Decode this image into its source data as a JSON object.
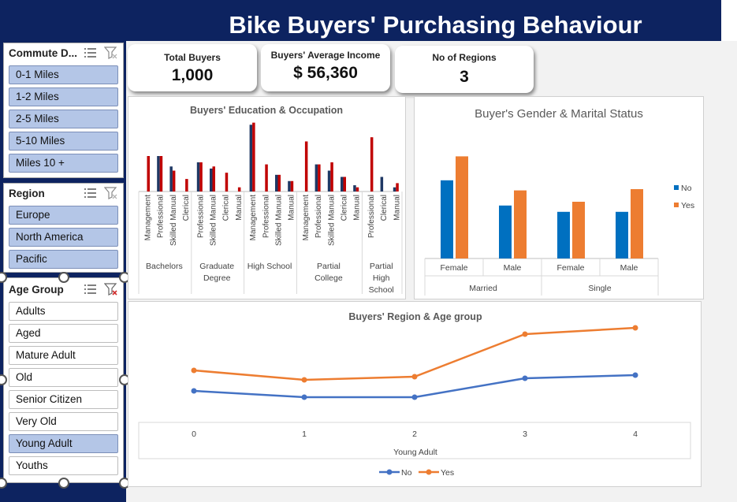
{
  "title": "Bike Buyers' Purchasing Behaviour",
  "kpis": {
    "total_buyers_label": "Total Buyers",
    "total_buyers_value": "1,000",
    "avg_income_label": "Buyers' Average Income",
    "avg_income_value": "$ 56,360",
    "regions_label": "No of Regions",
    "regions_value": "3"
  },
  "slicers": {
    "commute": {
      "title": "Commute D...",
      "items": [
        "0-1 Miles",
        "1-2 Miles",
        "2-5 Miles",
        "5-10 Miles",
        "Miles 10 +"
      ],
      "selected": [
        true,
        true,
        true,
        true,
        true
      ]
    },
    "region": {
      "title": "Region",
      "items": [
        "Europe",
        "North America",
        "Pacific"
      ],
      "selected": [
        true,
        true,
        true
      ]
    },
    "age": {
      "title": "Age Group",
      "items": [
        "Adults",
        "Aged",
        "Mature Adult",
        "Old",
        "Senior Citizen",
        "Very Old",
        "Young Adult",
        "Youths"
      ],
      "selected": [
        false,
        false,
        false,
        false,
        false,
        false,
        true,
        false
      ]
    }
  },
  "colors": {
    "navy": "#0d2360",
    "red": "#c00000",
    "darkblue": "#1f3864",
    "blue": "#0070c0",
    "orange": "#ed7d31",
    "line_blue": "#4472c4"
  },
  "chart_data": [
    {
      "type": "bar",
      "title": "Buyers' Education  & Occupation",
      "groups": [
        {
          "name": "Bachelors",
          "categories": [
            "Management",
            "Professional",
            "Skilled Manual",
            "Clerical"
          ],
          "no": [
            0,
            17,
            12,
            0
          ],
          "yes": [
            17,
            17,
            10,
            6
          ]
        },
        {
          "name": "Graduate Degree",
          "categories": [
            "Professional",
            "Skilled Manual",
            "Clerical",
            "Manual"
          ],
          "no": [
            14,
            11,
            0,
            0
          ],
          "yes": [
            14,
            12,
            9,
            2
          ]
        },
        {
          "name": "High School",
          "categories": [
            "Management",
            "Professional",
            "Skilled Manual",
            "Manual"
          ],
          "no": [
            32,
            0,
            8,
            5
          ],
          "yes": [
            33,
            13,
            8,
            5
          ]
        },
        {
          "name": "Partial College",
          "categories": [
            "Management",
            "Professional",
            "Skilled Manual",
            "Clerical",
            "Manual"
          ],
          "no": [
            0,
            13,
            10,
            7,
            3
          ],
          "yes": [
            24,
            13,
            14,
            7,
            2
          ]
        },
        {
          "name": "Partial High School",
          "categories": [
            "Professional",
            "Clerical",
            "Manual"
          ],
          "no": [
            0,
            7,
            2
          ],
          "yes": [
            26,
            0,
            4
          ]
        }
      ]
    },
    {
      "type": "bar",
      "title": "Buyer's Gender & Marital Status",
      "groups": [
        "Married",
        "Single"
      ],
      "categories": [
        "Female",
        "Male",
        "Female",
        "Male"
      ],
      "series": [
        {
          "name": "No",
          "values": [
            62,
            42,
            37,
            37
          ]
        },
        {
          "name": "Yes",
          "values": [
            81,
            54,
            45,
            55
          ]
        }
      ],
      "legend": "right"
    },
    {
      "type": "line",
      "title": "Buyers' Region & Age group",
      "x": [
        "0",
        "1",
        "2",
        "3",
        "4"
      ],
      "xlabel": "Young Adult",
      "series": [
        {
          "name": "No",
          "values": [
            12,
            8,
            8,
            20,
            22
          ]
        },
        {
          "name": "Yes",
          "values": [
            25,
            19,
            21,
            48,
            52
          ]
        }
      ],
      "legend": "bottom"
    }
  ]
}
